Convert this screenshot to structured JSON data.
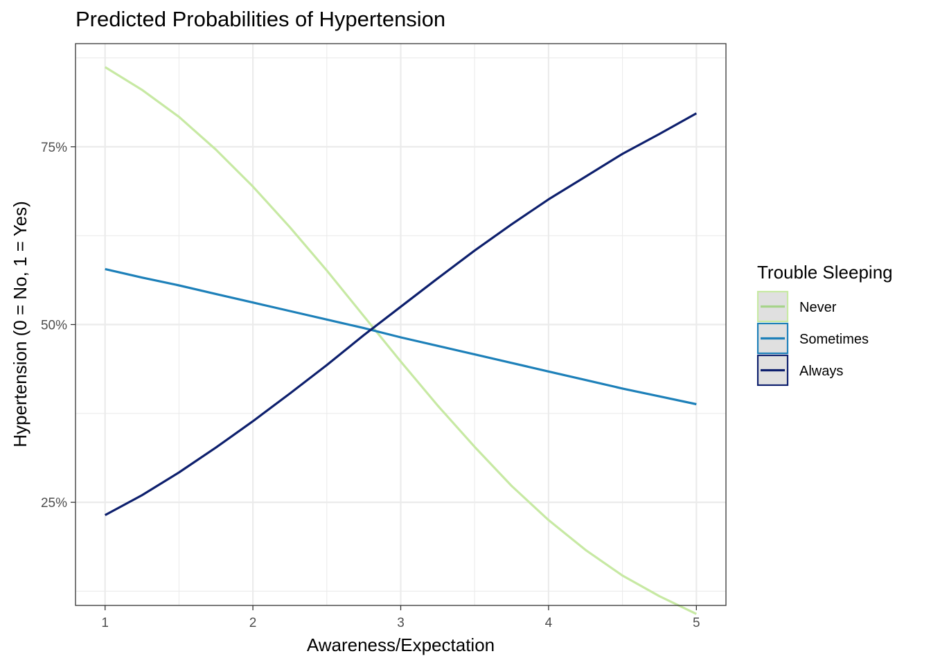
{
  "chart_data": {
    "type": "line",
    "title": "Predicted Probabilities of Hypertension",
    "xlabel": "Awareness/Expectation",
    "ylabel": "Hypertension (0 = No, 1 = Yes)",
    "x": [
      1,
      1.25,
      1.5,
      1.75,
      2,
      2.25,
      2.5,
      2.75,
      3,
      3.25,
      3.5,
      3.75,
      4,
      4.25,
      4.5,
      4.75,
      5
    ],
    "xlim": [
      0.8,
      5.2
    ],
    "ylim": [
      0.105,
      0.895
    ],
    "xticks": [
      1,
      2,
      3,
      4,
      5
    ],
    "xtick_labels": [
      "1",
      "2",
      "3",
      "4",
      "5"
    ],
    "yticks": [
      0.25,
      0.5,
      0.75
    ],
    "ytick_labels": [
      "25%",
      "50%",
      "75%"
    ],
    "yminor": [
      0.125,
      0.375,
      0.625,
      0.875
    ],
    "xminor": [
      1.5,
      2.5,
      3.5,
      4.5
    ],
    "grid": true,
    "legend_title": "Trouble Sleeping",
    "legend_position": "right",
    "series": [
      {
        "name": "Never",
        "color": "#c7e9a3",
        "key_color": "#a6d48a",
        "values": [
          0.862,
          0.83,
          0.792,
          0.746,
          0.694,
          0.637,
          0.576,
          0.512,
          0.448,
          0.386,
          0.328,
          0.273,
          0.225,
          0.183,
          0.147,
          0.118,
          0.093
        ]
      },
      {
        "name": "Sometimes",
        "color": "#1d80b9",
        "key_color": "#1d80b9",
        "values": [
          0.578,
          0.566,
          0.555,
          0.543,
          0.531,
          0.519,
          0.507,
          0.495,
          0.482,
          0.47,
          0.458,
          0.446,
          0.434,
          0.422,
          0.41,
          0.399,
          0.388
        ]
      },
      {
        "name": "Always",
        "color": "#0d1f6d",
        "key_color": "#0d1f6d",
        "values": [
          0.232,
          0.26,
          0.292,
          0.327,
          0.364,
          0.403,
          0.443,
          0.485,
          0.525,
          0.565,
          0.604,
          0.641,
          0.676,
          0.708,
          0.74,
          0.768,
          0.797
        ]
      }
    ]
  }
}
